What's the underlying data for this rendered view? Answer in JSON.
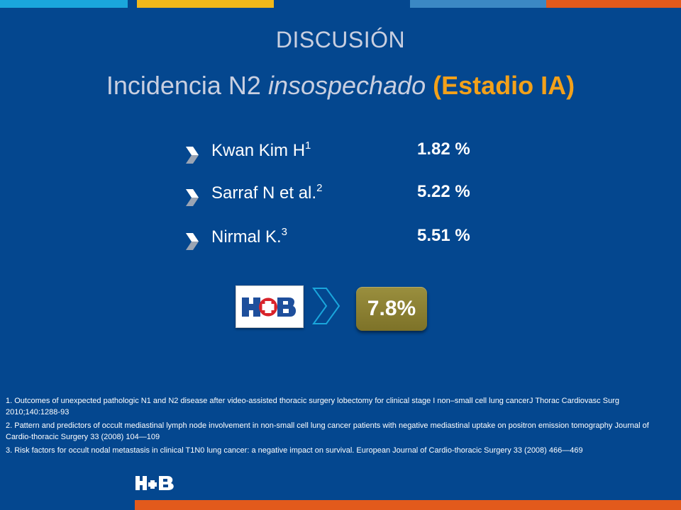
{
  "colors": {
    "background": "#04478f",
    "accent_orange": "#f3a11a",
    "bar_cyan": "#1aa6dc",
    "bar_yellow": "#f1b81a",
    "bar_blue": "#3b88c4",
    "bar_orange": "#e25a1c",
    "badge": "#8c8234"
  },
  "header": {
    "title": "DISCUSIÓN",
    "subtitle_pre": "Incidencia N2 ",
    "subtitle_italic": "insospechado",
    "subtitle_highlight": "(Estadio IA)"
  },
  "studies": [
    {
      "name": "Kwan Kim H",
      "ref": "1",
      "value": "1.82 %"
    },
    {
      "name": "Sarraf N et al.",
      "ref": "2",
      "value": "5.22 %"
    },
    {
      "name": "Nirmal K.",
      "ref": "3",
      "value": "5.51 %"
    }
  ],
  "comparison": {
    "logo_icon": "hospital-logo-icon",
    "arrow_icon": "chevron-right-icon",
    "result": "7.8%"
  },
  "references": [
    "1. Outcomes of unexpected pathologic N1 and N2 disease after video-assisted thoracic surgery lobectomy for clinical stage I non–small cell lung cancerJ Thorac Cardiovasc Surg 2010;140:1288-93",
    "2. Pattern and predictors of occult mediastinal lymph node involvement in non-small cell lung cancer patients with negative mediastinal uptake on positron emission tomography Journal of Cardio-thoracic Surgery 33 (2008) 104—109",
    "3. Risk factors for occult nodal metastasis in clinical T1N0 lung cancer: a negative impact on survival. European Journal of Cardio-thoracic Surgery 33 (2008) 466—469"
  ]
}
